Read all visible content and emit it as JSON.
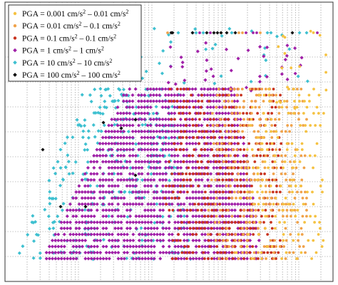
{
  "chart_data": {
    "type": "scatter",
    "title": "",
    "xlabel": "",
    "ylabel": "",
    "xscale": "log",
    "yscale": "linear",
    "grid": true,
    "legend_position": "top-left",
    "series": [
      {
        "name_prefix": "PGA = 0.001 cm/s",
        "name_mid": " – 0.01 cm/s",
        "color": "#f5c242",
        "marker": "dot",
        "points_note": "sparse, concentrated toward right side"
      },
      {
        "name_prefix": "PGA = 0.01 cm/s",
        "name_mid": " – 0.1 cm/s",
        "color": "#f0a24a",
        "marker": "dot",
        "points_note": "right side of cloud"
      },
      {
        "name_prefix": "PGA = 0.1 cm/s",
        "name_mid": " – 0.1 cm/s",
        "color": "#c8321e",
        "marker": "dot",
        "points_note": "center-right"
      },
      {
        "name_prefix": "PGA = 1 cm/s",
        "name_mid": " – 1 cm/s",
        "color": "#a020a8",
        "marker": "diamond",
        "points_note": "center, dominant"
      },
      {
        "name_prefix": "PGA = 10 cm/s",
        "name_mid": " – 10 cm/s",
        "color": "#3ec0d0",
        "marker": "diamond",
        "points_note": "center-left"
      },
      {
        "name_prefix": "PGA = 100 cm/s",
        "name_mid": " – 100 cm/s",
        "color": "#111111",
        "marker": "diamond",
        "points_note": "few, upper left"
      }
    ],
    "sup": "2"
  }
}
